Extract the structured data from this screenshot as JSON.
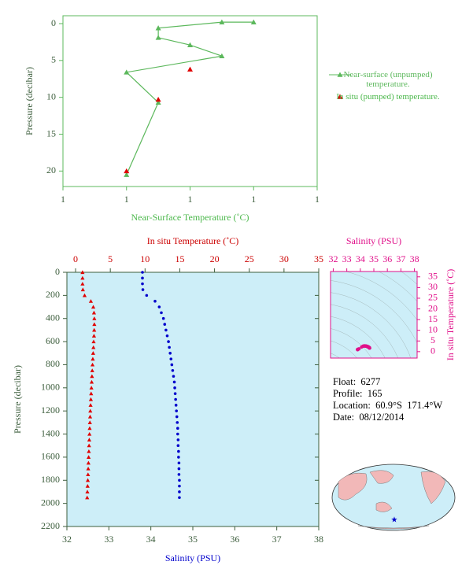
{
  "chart_data": [
    {
      "type": "line",
      "xlabel": "Near-Surface Temperature (˚C)",
      "ylabel": "Pressure (decibar)",
      "xlim": [
        1,
        1.4
      ],
      "xticks": [
        1,
        {
          "value": 1.1,
          "label": "1"
        },
        {
          "value": 1.2,
          "label": "1"
        },
        {
          "value": 1.3,
          "label": "1"
        },
        {
          "value": 1.4,
          "label": "1"
        }
      ],
      "ylim": [
        -1.07,
        22.1
      ],
      "y_inverted": true,
      "yticks": [
        0,
        5,
        10,
        15,
        20
      ],
      "series": [
        {
          "name": "Near-surface (unpumped) temperature.",
          "color": "#5cb85c",
          "marker": "triangle",
          "line": true,
          "x": [
            1.3,
            1.25,
            1.15,
            1.15,
            1.2,
            1.25,
            1.1,
            1.15,
            1.1
          ],
          "values": [
            -0.2,
            -0.2,
            0.6,
            1.9,
            2.9,
            4.4,
            6.6,
            10.7,
            20.5
          ]
        },
        {
          "name": "In situ (pumped) temperature.",
          "color": "#e00000",
          "marker": "triangle",
          "line": false,
          "x": [
            1.2,
            1.15,
            1.1
          ],
          "values": [
            6.2,
            10.3,
            20.0
          ]
        }
      ]
    },
    {
      "type": "scatter",
      "ylabel": "Pressure (decibar)",
      "xlabel": "Salinity (PSU)",
      "x2label": "In situ Temperature (˚C)",
      "xlim": [
        32,
        38
      ],
      "xticks": [
        32,
        33,
        34,
        35,
        36,
        37,
        38
      ],
      "x2lim": [
        -1.25,
        35
      ],
      "x2ticks": [
        0,
        5,
        10,
        15,
        20,
        25,
        30,
        35
      ],
      "ylim": [
        0,
        2200
      ],
      "y_inverted": true,
      "yticks": [
        0,
        200,
        400,
        600,
        800,
        1000,
        1200,
        1400,
        1600,
        1800,
        2000,
        2200
      ],
      "background": "#cdeef8",
      "y": [
        0,
        50,
        100,
        150,
        200,
        250,
        300,
        350,
        400,
        450,
        500,
        550,
        600,
        650,
        700,
        750,
        800,
        850,
        900,
        950,
        1000,
        1050,
        1100,
        1150,
        1200,
        1250,
        1300,
        1350,
        1400,
        1450,
        1500,
        1550,
        1600,
        1650,
        1700,
        1750,
        1800,
        1850,
        1900,
        1950
      ],
      "series": [
        {
          "name": "In situ Temperature",
          "axis": "x2",
          "color": "#e00000",
          "marker": "triangle",
          "values": [
            1.0,
            1.0,
            1.0,
            1.05,
            1.3,
            2.2,
            2.55,
            2.65,
            2.7,
            2.7,
            2.68,
            2.65,
            2.6,
            2.57,
            2.53,
            2.48,
            2.44,
            2.4,
            2.36,
            2.32,
            2.28,
            2.24,
            2.2,
            2.16,
            2.12,
            2.09,
            2.06,
            2.03,
            2.0,
            1.97,
            1.94,
            1.91,
            1.88,
            1.85,
            1.82,
            1.79,
            1.76,
            1.73,
            1.7,
            1.67
          ]
        },
        {
          "name": "Salinity",
          "axis": "x",
          "color": "#0000cc",
          "marker": "circle",
          "values": [
            33.8,
            33.8,
            33.8,
            33.81,
            33.9,
            34.1,
            34.2,
            34.25,
            34.3,
            34.33,
            34.36,
            34.39,
            34.42,
            34.44,
            34.46,
            34.48,
            34.5,
            34.52,
            34.54,
            34.56,
            34.57,
            34.58,
            34.59,
            34.6,
            34.61,
            34.62,
            34.63,
            34.64,
            34.64,
            34.65,
            34.65,
            34.66,
            34.66,
            34.67,
            34.67,
            34.67,
            34.68,
            34.68,
            34.68,
            34.68
          ]
        }
      ]
    },
    {
      "type": "ts",
      "xlabel": "Salinity (PSU)",
      "ylabel": "In situ Temperature (˚C)",
      "color": "#e0108a",
      "xlim": [
        31.8,
        38.2
      ],
      "xticks": [
        32,
        33,
        34,
        35,
        36,
        37,
        38
      ],
      "ylim": [
        -3,
        37.5
      ],
      "yticks": [
        0,
        5,
        10,
        15,
        20,
        25,
        30,
        35
      ],
      "background": "#cdeef8"
    }
  ],
  "info": [
    "Float:  6277",
    "Profile:  165",
    "Location:  60.9°S  171.4°W",
    "Date:  08/12/2014"
  ]
}
